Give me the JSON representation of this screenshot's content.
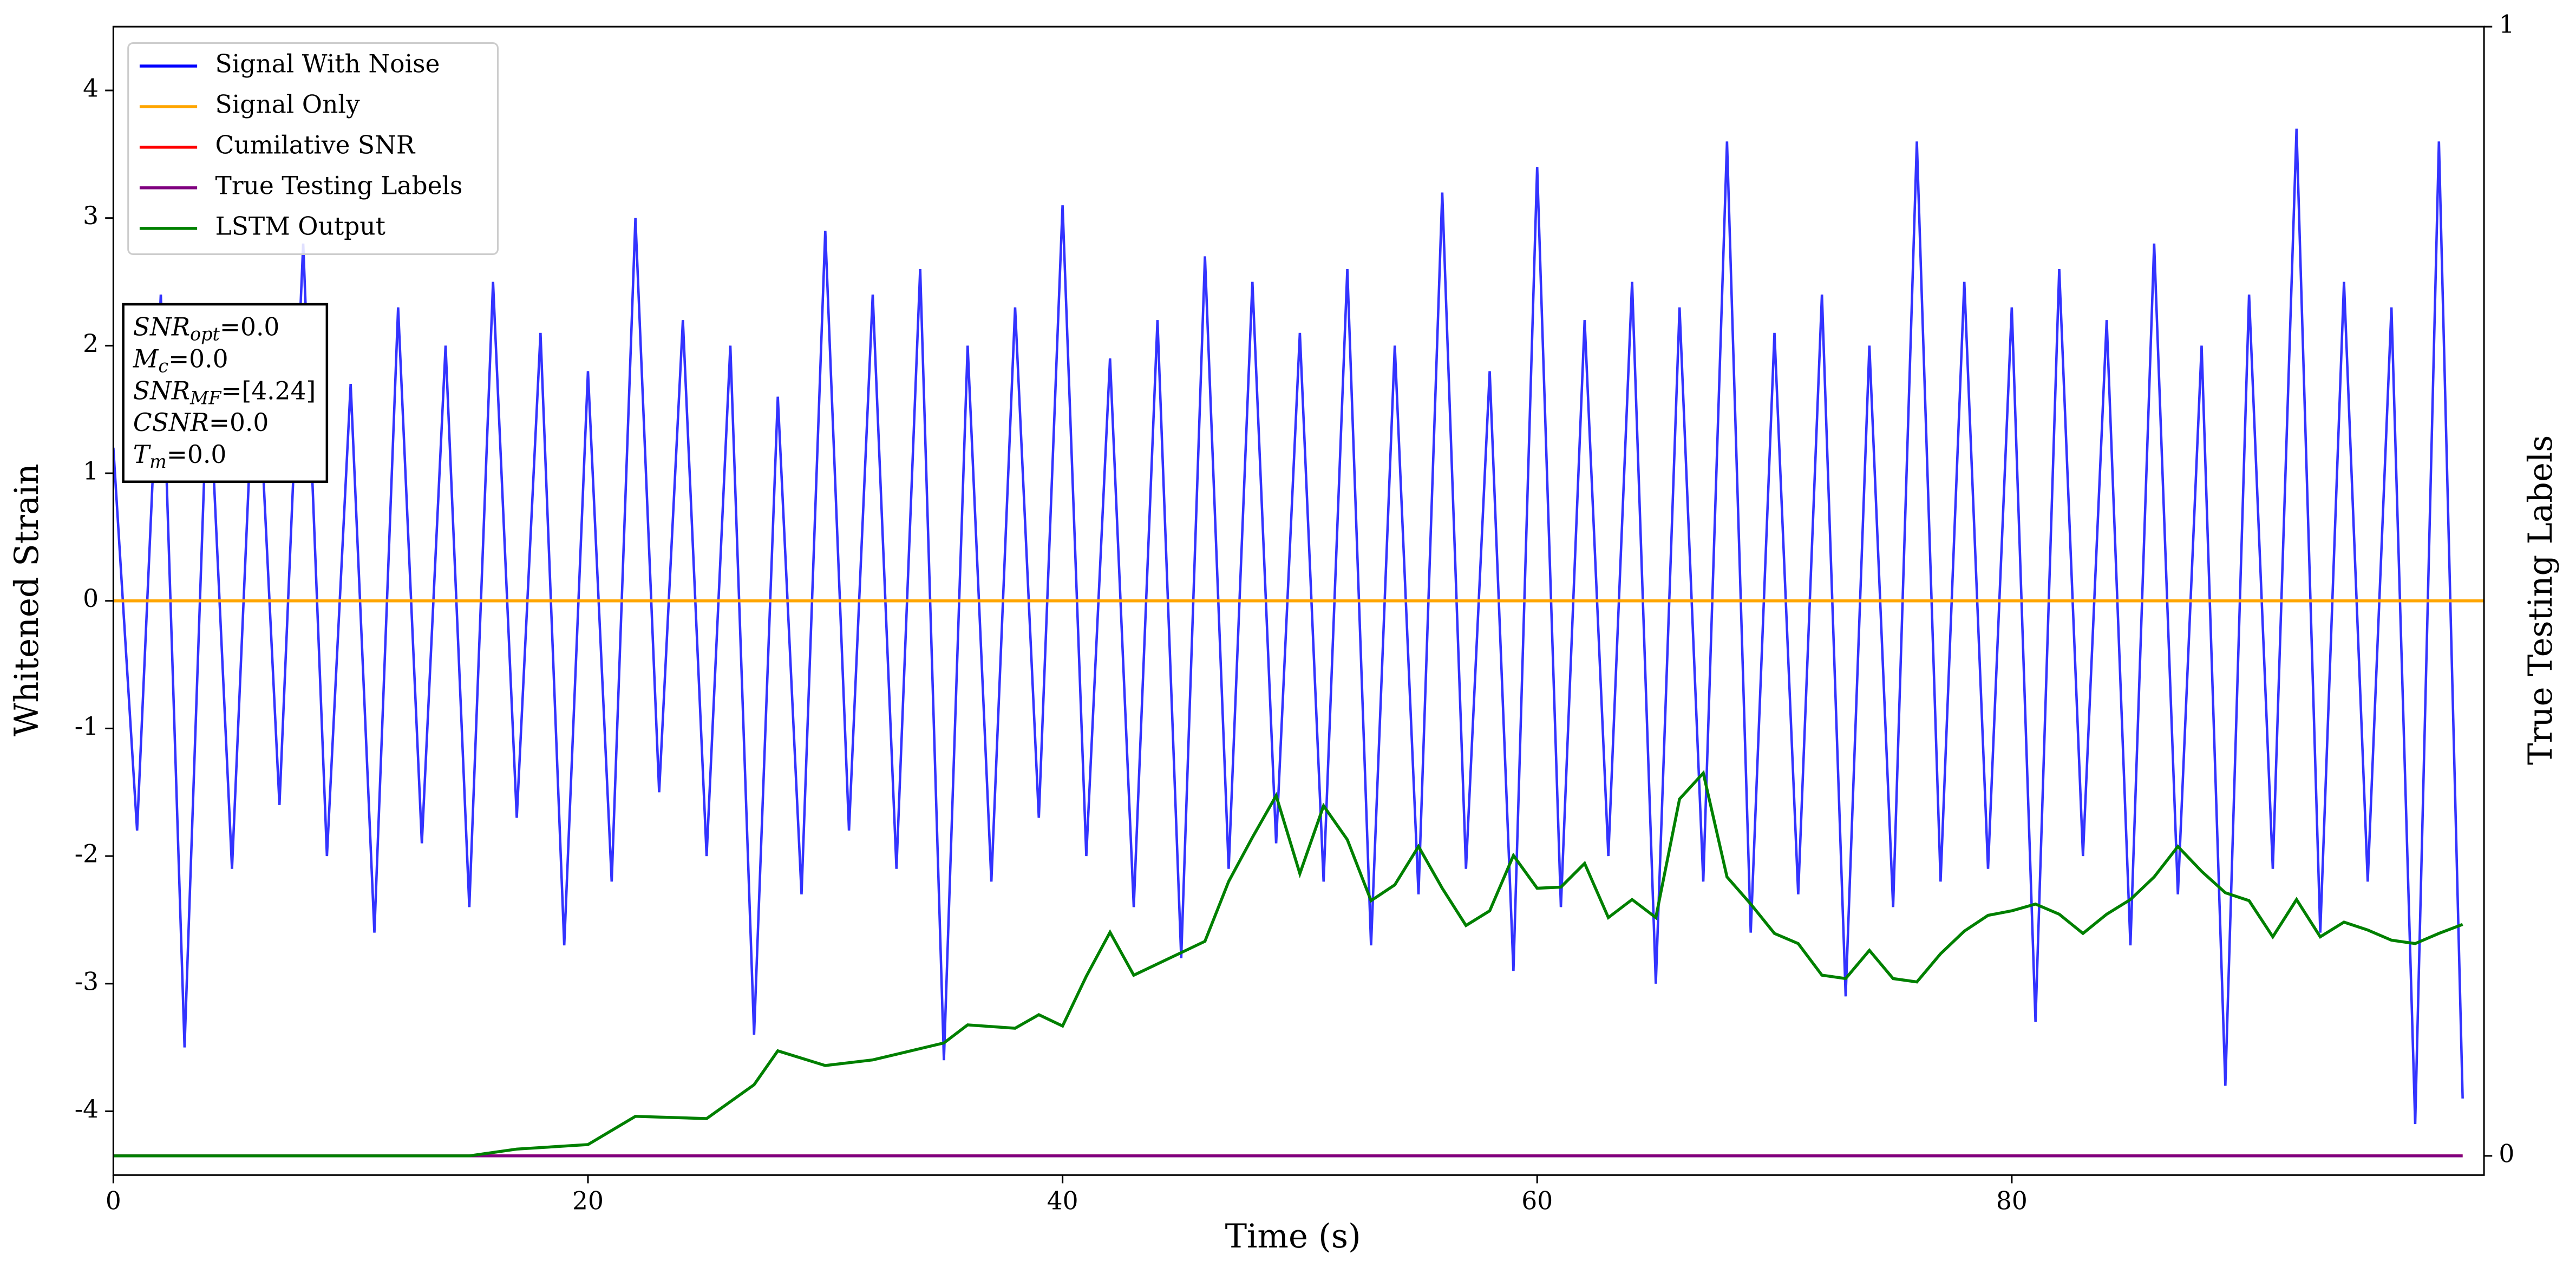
{
  "chart_data": {
    "type": "line",
    "xlabel": "Time (s)",
    "ylabel": "Whitened Strain",
    "y2label": "True Testing Labels",
    "xlim": [
      0,
      99.9
    ],
    "xticks": [
      0,
      20,
      40,
      60,
      80
    ],
    "ylim": [
      -4.5,
      4.5
    ],
    "yticks": [
      -4,
      -3,
      -2,
      -1,
      0,
      1,
      2,
      3,
      4
    ],
    "y2lim": [
      -0.017,
      1
    ],
    "y2ticks": [
      0,
      1
    ],
    "legend": "upper left",
    "annotation": [
      {
        "main": "SNR",
        "sub": "opt",
        "rest": "=0.0"
      },
      {
        "main": "M",
        "sub": "c",
        "rest": "=0.0"
      },
      {
        "main": "SNR",
        "sub": "MF",
        "rest": "=[4.24]"
      },
      {
        "main": "CSNR",
        "rest": "=0.0"
      },
      {
        "main": "T",
        "sub": "m",
        "rest": "=0.0"
      }
    ],
    "series": [
      {
        "name": "Signal With Noise",
        "color": "#0000ff",
        "axis": "y",
        "x": [
          0,
          1,
          2,
          3,
          4,
          5,
          6,
          7,
          8,
          9,
          10,
          11,
          12,
          13,
          14,
          15,
          16,
          17,
          18,
          19,
          20,
          21,
          22,
          23,
          24,
          25,
          26,
          27,
          28,
          29,
          30,
          31,
          32,
          33,
          34,
          35,
          36,
          37,
          38,
          39,
          40,
          41,
          42,
          43,
          44,
          45,
          46,
          47,
          48,
          49,
          50,
          51,
          52,
          53,
          54,
          55,
          56,
          57,
          58,
          59,
          60,
          61,
          62,
          63,
          64,
          65,
          66,
          67,
          68,
          69,
          70,
          71,
          72,
          73,
          74,
          75,
          76,
          77,
          78,
          79,
          80,
          81,
          82,
          83,
          84,
          85,
          86,
          87,
          88,
          89,
          90,
          91,
          92,
          93,
          94,
          95,
          96,
          97,
          98,
          99
        ],
        "values": [
          1.2,
          -1.8,
          2.4,
          -3.5,
          1.9,
          -2.1,
          2.2,
          -1.6,
          2.8,
          -2.0,
          1.7,
          -2.6,
          2.3,
          -1.9,
          2.0,
          -2.4,
          2.5,
          -1.7,
          2.1,
          -2.7,
          1.8,
          -2.2,
          3.0,
          -1.5,
          2.2,
          -2.0,
          2.0,
          -3.4,
          1.6,
          -2.3,
          2.9,
          -1.8,
          2.4,
          -2.1,
          2.6,
          -3.6,
          2.0,
          -2.2,
          2.3,
          -1.7,
          3.1,
          -2.0,
          1.9,
          -2.4,
          2.2,
          -2.8,
          2.7,
          -2.1,
          2.5,
          -1.9,
          2.1,
          -2.2,
          2.6,
          -2.7,
          2.0,
          -2.3,
          3.2,
          -2.1,
          1.8,
          -2.9,
          3.4,
          -2.4,
          2.2,
          -2.0,
          2.5,
          -3.0,
          2.3,
          -2.2,
          3.6,
          -2.6,
          2.1,
          -2.3,
          2.4,
          -3.1,
          2.0,
          -2.4,
          3.6,
          -2.2,
          2.5,
          -2.1,
          2.3,
          -3.3,
          2.6,
          -2.0,
          2.2,
          -2.7,
          2.8,
          -2.3,
          2.0,
          -3.8,
          2.4,
          -2.1,
          3.7,
          -2.6,
          2.5,
          -2.2,
          2.3,
          -4.1,
          3.6,
          -3.9
        ]
      },
      {
        "name": "Signal Only",
        "color": "#ffa500",
        "axis": "y",
        "x": [
          0,
          99.9
        ],
        "values": [
          0,
          0
        ]
      },
      {
        "name": "Cumilative SNR",
        "color": "#ff0000",
        "axis": "y2",
        "x": [
          0,
          99
        ],
        "values": [
          0,
          0
        ]
      },
      {
        "name": "True Testing Labels",
        "color": "#800080",
        "axis": "y2",
        "x": [
          0,
          99
        ],
        "values": [
          0,
          0
        ]
      },
      {
        "name": "LSTM Output",
        "color": "#008000",
        "axis": "y2",
        "x": [
          0,
          5,
          10,
          15,
          17,
          20,
          22,
          25,
          27,
          28,
          30,
          32,
          35,
          36,
          38,
          39,
          40,
          41,
          42,
          43,
          45,
          46,
          47,
          48,
          49,
          50,
          51,
          52,
          53,
          54,
          55,
          56,
          57,
          58,
          59,
          60,
          61,
          62,
          63,
          64,
          65,
          66,
          67,
          68,
          69,
          70,
          71,
          72,
          73,
          74,
          75,
          76,
          77,
          78,
          79,
          80,
          81,
          82,
          83,
          84,
          85,
          86,
          87,
          88,
          89,
          90,
          91,
          92,
          93,
          94,
          95,
          96,
          97,
          98,
          99
        ],
        "values": [
          0,
          0,
          0,
          0,
          0.006,
          0.01,
          0.035,
          0.033,
          0.063,
          0.093,
          0.08,
          0.085,
          0.1,
          0.116,
          0.113,
          0.125,
          0.115,
          0.159,
          0.198,
          0.16,
          0.18,
          0.19,
          0.243,
          0.282,
          0.319,
          0.25,
          0.31,
          0.28,
          0.226,
          0.24,
          0.274,
          0.237,
          0.204,
          0.217,
          0.266,
          0.237,
          0.238,
          0.259,
          0.211,
          0.227,
          0.211,
          0.316,
          0.339,
          0.247,
          0.223,
          0.197,
          0.188,
          0.16,
          0.157,
          0.182,
          0.157,
          0.154,
          0.179,
          0.199,
          0.213,
          0.217,
          0.223,
          0.214,
          0.197,
          0.214,
          0.227,
          0.247,
          0.274,
          0.252,
          0.233,
          0.226,
          0.194,
          0.227,
          0.194,
          0.207,
          0.2,
          0.191,
          0.188,
          0.197,
          0.205
        ]
      }
    ]
  }
}
